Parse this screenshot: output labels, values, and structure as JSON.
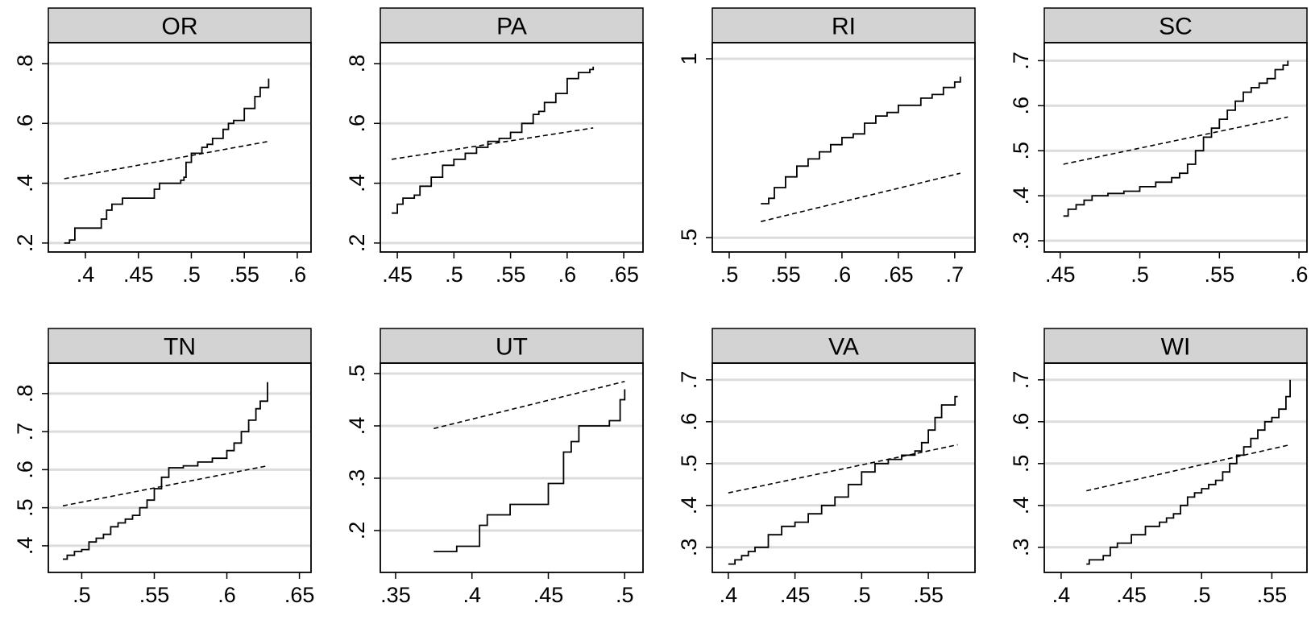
{
  "colors": {
    "background": "#ffffff",
    "strip_fill": "#d3d3d3",
    "gridline": "#dcdcdc",
    "frame": "#000000",
    "line": "#000000"
  },
  "chart_data": [
    {
      "type": "line",
      "title": "OR",
      "xticks": [
        ".4",
        ".45",
        ".5",
        ".55",
        ".6"
      ],
      "yticks": [
        ".2",
        ".4",
        ".6",
        ".8"
      ],
      "xlim": [
        0.365,
        0.613
      ],
      "ylim": [
        0.17,
        0.87
      ],
      "grid": true,
      "series": [
        {
          "style": "solid",
          "x": [
            0.38,
            0.385,
            0.39,
            0.41,
            0.415,
            0.42,
            0.425,
            0.435,
            0.46,
            0.465,
            0.47,
            0.48,
            0.49,
            0.493,
            0.495,
            0.5,
            0.51,
            0.515,
            0.52,
            0.53,
            0.535,
            0.54,
            0.55,
            0.56,
            0.565,
            0.573
          ],
          "y": [
            0.2,
            0.21,
            0.25,
            0.25,
            0.28,
            0.31,
            0.33,
            0.35,
            0.35,
            0.38,
            0.4,
            0.4,
            0.41,
            0.42,
            0.47,
            0.5,
            0.52,
            0.53,
            0.55,
            0.58,
            0.6,
            0.61,
            0.65,
            0.69,
            0.72,
            0.75
          ]
        },
        {
          "style": "dashed",
          "x": [
            0.38,
            0.573
          ],
          "y": [
            0.415,
            0.54
          ]
        }
      ]
    },
    {
      "type": "line",
      "title": "PA",
      "xticks": [
        ".45",
        ".5",
        ".55",
        ".6",
        ".65"
      ],
      "yticks": [
        ".2",
        ".4",
        ".6",
        ".8"
      ],
      "xlim": [
        0.435,
        0.667
      ],
      "ylim": [
        0.17,
        0.87
      ],
      "grid": true,
      "series": [
        {
          "style": "solid",
          "x": [
            0.445,
            0.45,
            0.455,
            0.465,
            0.47,
            0.48,
            0.49,
            0.5,
            0.51,
            0.52,
            0.53,
            0.54,
            0.55,
            0.56,
            0.57,
            0.575,
            0.58,
            0.59,
            0.6,
            0.61,
            0.62,
            0.623
          ],
          "y": [
            0.3,
            0.33,
            0.35,
            0.36,
            0.39,
            0.42,
            0.46,
            0.48,
            0.5,
            0.52,
            0.54,
            0.55,
            0.57,
            0.6,
            0.63,
            0.64,
            0.67,
            0.7,
            0.75,
            0.77,
            0.78,
            0.79
          ]
        },
        {
          "style": "dashed",
          "x": [
            0.445,
            0.623
          ],
          "y": [
            0.48,
            0.585
          ]
        }
      ]
    },
    {
      "type": "line",
      "title": "RI",
      "xticks": [
        ".5",
        ".55",
        ".6",
        ".65",
        ".7"
      ],
      "yticks": [
        ".5",
        "1"
      ],
      "xlim": [
        0.485,
        0.718
      ],
      "ylim": [
        0.46,
        1.045
      ],
      "grid": true,
      "series": [
        {
          "style": "solid",
          "x": [
            0.528,
            0.535,
            0.54,
            0.55,
            0.56,
            0.57,
            0.58,
            0.59,
            0.6,
            0.61,
            0.62,
            0.63,
            0.64,
            0.65,
            0.66,
            0.67,
            0.68,
            0.69,
            0.7,
            0.705
          ],
          "y": [
            0.595,
            0.61,
            0.64,
            0.67,
            0.7,
            0.72,
            0.74,
            0.76,
            0.78,
            0.79,
            0.82,
            0.84,
            0.85,
            0.87,
            0.87,
            0.89,
            0.9,
            0.92,
            0.935,
            0.95
          ]
        },
        {
          "style": "dashed",
          "x": [
            0.528,
            0.705
          ],
          "y": [
            0.545,
            0.68
          ]
        }
      ]
    },
    {
      "type": "line",
      "title": "SC",
      "xticks": [
        ".45",
        ".5",
        ".55",
        ".6"
      ],
      "yticks": [
        ".3",
        ".4",
        ".5",
        ".6",
        ".7"
      ],
      "xlim": [
        0.44,
        0.605
      ],
      "ylim": [
        0.275,
        0.74
      ],
      "grid": true,
      "series": [
        {
          "style": "solid",
          "x": [
            0.452,
            0.455,
            0.46,
            0.465,
            0.47,
            0.48,
            0.49,
            0.5,
            0.51,
            0.52,
            0.525,
            0.53,
            0.535,
            0.54,
            0.545,
            0.55,
            0.555,
            0.56,
            0.565,
            0.57,
            0.575,
            0.58,
            0.585,
            0.59,
            0.593
          ],
          "y": [
            0.355,
            0.37,
            0.38,
            0.39,
            0.4,
            0.405,
            0.41,
            0.42,
            0.43,
            0.44,
            0.45,
            0.47,
            0.5,
            0.53,
            0.55,
            0.57,
            0.59,
            0.61,
            0.63,
            0.64,
            0.65,
            0.66,
            0.68,
            0.69,
            0.7
          ]
        },
        {
          "style": "dashed",
          "x": [
            0.452,
            0.593
          ],
          "y": [
            0.47,
            0.575
          ]
        }
      ]
    },
    {
      "type": "line",
      "title": "TN",
      "xticks": [
        ".5",
        ".55",
        ".6",
        ".65"
      ],
      "yticks": [
        ".4",
        ".5",
        ".6",
        ".7",
        ".8"
      ],
      "xlim": [
        0.477,
        0.658
      ],
      "ylim": [
        0.33,
        0.88
      ],
      "grid": true,
      "series": [
        {
          "style": "solid",
          "x": [
            0.487,
            0.49,
            0.495,
            0.5,
            0.505,
            0.51,
            0.515,
            0.52,
            0.525,
            0.53,
            0.535,
            0.54,
            0.545,
            0.55,
            0.555,
            0.56,
            0.57,
            0.58,
            0.59,
            0.6,
            0.605,
            0.61,
            0.615,
            0.62,
            0.623,
            0.628
          ],
          "y": [
            0.365,
            0.375,
            0.385,
            0.39,
            0.41,
            0.42,
            0.43,
            0.45,
            0.46,
            0.47,
            0.48,
            0.5,
            0.52,
            0.55,
            0.58,
            0.605,
            0.61,
            0.62,
            0.63,
            0.65,
            0.67,
            0.7,
            0.73,
            0.76,
            0.78,
            0.83
          ]
        },
        {
          "style": "dashed",
          "x": [
            0.487,
            0.628
          ],
          "y": [
            0.505,
            0.61
          ]
        }
      ]
    },
    {
      "type": "line",
      "title": "UT",
      "xticks": [
        ".35",
        ".4",
        ".45",
        ".5"
      ],
      "yticks": [
        ".2",
        ".3",
        ".4",
        ".5"
      ],
      "xlim": [
        0.34,
        0.512
      ],
      "ylim": [
        0.12,
        0.52
      ],
      "grid": true,
      "series": [
        {
          "style": "solid",
          "x": [
            0.375,
            0.385,
            0.39,
            0.4,
            0.405,
            0.41,
            0.42,
            0.425,
            0.43,
            0.44,
            0.45,
            0.455,
            0.46,
            0.465,
            0.47,
            0.48,
            0.49,
            0.495,
            0.497,
            0.5
          ],
          "y": [
            0.16,
            0.16,
            0.17,
            0.17,
            0.21,
            0.23,
            0.23,
            0.25,
            0.25,
            0.25,
            0.29,
            0.29,
            0.35,
            0.37,
            0.4,
            0.4,
            0.41,
            0.41,
            0.45,
            0.47
          ]
        },
        {
          "style": "dashed",
          "x": [
            0.375,
            0.5
          ],
          "y": [
            0.395,
            0.485
          ]
        }
      ]
    },
    {
      "type": "line",
      "title": "VA",
      "xticks": [
        ".4",
        ".45",
        ".5",
        ".55"
      ],
      "yticks": [
        ".3",
        ".4",
        ".5",
        ".6",
        ".7"
      ],
      "xlim": [
        0.388,
        0.585
      ],
      "ylim": [
        0.24,
        0.74
      ],
      "grid": true,
      "series": [
        {
          "style": "solid",
          "x": [
            0.4,
            0.405,
            0.41,
            0.415,
            0.42,
            0.43,
            0.44,
            0.45,
            0.46,
            0.47,
            0.48,
            0.49,
            0.5,
            0.51,
            0.52,
            0.53,
            0.54,
            0.545,
            0.55,
            0.555,
            0.56,
            0.57,
            0.572
          ],
          "y": [
            0.26,
            0.27,
            0.28,
            0.29,
            0.3,
            0.33,
            0.35,
            0.36,
            0.38,
            0.4,
            0.42,
            0.45,
            0.48,
            0.5,
            0.51,
            0.52,
            0.53,
            0.55,
            0.58,
            0.61,
            0.64,
            0.66,
            0.66
          ]
        },
        {
          "style": "dashed",
          "x": [
            0.4,
            0.572
          ],
          "y": [
            0.43,
            0.545
          ]
        }
      ]
    },
    {
      "type": "line",
      "title": "WI",
      "xticks": [
        ".4",
        ".45",
        ".5",
        ".55"
      ],
      "yticks": [
        ".3",
        ".4",
        ".5",
        ".6",
        ".7"
      ],
      "xlim": [
        0.388,
        0.575
      ],
      "ylim": [
        0.24,
        0.74
      ],
      "grid": true,
      "series": [
        {
          "style": "solid",
          "x": [
            0.418,
            0.42,
            0.43,
            0.435,
            0.44,
            0.45,
            0.46,
            0.47,
            0.475,
            0.48,
            0.485,
            0.49,
            0.495,
            0.5,
            0.505,
            0.51,
            0.515,
            0.52,
            0.525,
            0.53,
            0.535,
            0.54,
            0.545,
            0.55,
            0.555,
            0.56,
            0.563
          ],
          "y": [
            0.26,
            0.27,
            0.28,
            0.3,
            0.31,
            0.33,
            0.35,
            0.36,
            0.37,
            0.38,
            0.4,
            0.42,
            0.43,
            0.44,
            0.45,
            0.46,
            0.48,
            0.5,
            0.52,
            0.54,
            0.56,
            0.58,
            0.6,
            0.61,
            0.63,
            0.66,
            0.7
          ]
        },
        {
          "style": "dashed",
          "x": [
            0.418,
            0.563
          ],
          "y": [
            0.435,
            0.545
          ]
        }
      ]
    }
  ]
}
